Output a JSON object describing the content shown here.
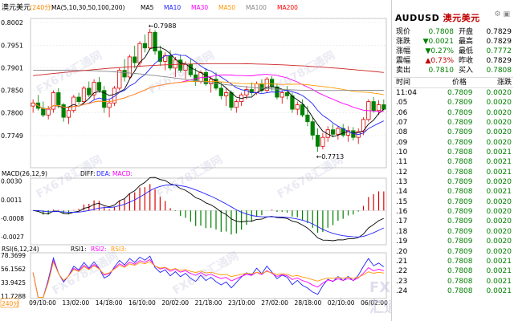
{
  "main": {
    "title": "澳元美元",
    "period": "240分",
    "ma_label": "MA(5,10,30,50,100,200)",
    "ma_items": [
      {
        "label": "MA5",
        "color": "#000000"
      },
      {
        "label": "MA10",
        "color": "#2222ff"
      },
      {
        "label": "MA30",
        "color": "#ff00ff"
      },
      {
        "label": "MA50",
        "color": "#ff9900"
      },
      {
        "label": "MA100",
        "color": "#888888"
      },
      {
        "label": "MA200",
        "color": "#ff0000"
      }
    ],
    "y_labels": [
      "0.8002",
      "0.7951",
      "0.7901",
      "0.7850",
      "0.7800",
      "0.7749"
    ],
    "high_label": "0.7988",
    "low_label": "0.7713"
  },
  "macd": {
    "label": "MACD(26,12,9)",
    "diff": "DIFF:",
    "dea": "DEA:",
    "macd": "MACD:",
    "y_labels": [
      "0.0030",
      "0.0011",
      "-0.0008",
      "-0.0027"
    ]
  },
  "rsi": {
    "label": "RSI(6,12,24)",
    "rsi1": "RSI1:",
    "rsi2": "RSI2:",
    "rsi3": "RSI3:",
    "y_labels": [
      "78.3699",
      "56.1562",
      "33.9425",
      "11.7288"
    ]
  },
  "x_labels": [
    "09/10:00",
    "13/02:00",
    "14/18:00",
    "16/10:00",
    "20/02:00",
    "21/18:00",
    "23/10:00",
    "27/02:00",
    "28/18:00",
    "02/10:00",
    "06/02:00"
  ],
  "period_box": "240分",
  "sidebar": {
    "symbol": "AUDUSD",
    "name": "澳元美元",
    "quote": [
      {
        "l1": "现价",
        "v1": "0.7808",
        "c1": "#008000",
        "l2": "开盘",
        "v2": "0.7829",
        "c2": "#000000"
      },
      {
        "l1": "涨跌",
        "v1": "▼0.0021",
        "c1": "#008000",
        "l2": "最高",
        "v2": "0.7829",
        "c2": "#000000"
      },
      {
        "l1": "涨幅",
        "v1": "▼0.27%",
        "c1": "#008000",
        "l2": "最低",
        "v2": "0.7772",
        "c2": "#008000"
      },
      {
        "l1": "震幅",
        "v1": "▲0.73%",
        "c1": "#c00000",
        "l2": "昨收",
        "v2": "0.7829",
        "c2": "#000000"
      },
      {
        "l1": "卖出",
        "v1": "0.7810",
        "c1": "#008000",
        "l2": "买入",
        "v2": "0.7808",
        "c2": "#008000"
      }
    ],
    "tick_header": {
      "time": "时间",
      "price": "价格",
      "change": "涨跌"
    },
    "ticks": [
      {
        "time": "11:04",
        "price": "0.7809",
        "chg": "0.0020"
      },
      {
        "time": ".05",
        "price": "0.7809",
        "chg": "0.0020"
      },
      {
        "time": ".06",
        "price": "0.7809",
        "chg": "0.0020"
      },
      {
        "time": ".07",
        "price": "0.7809",
        "chg": "0.0020"
      },
      {
        "time": ".08",
        "price": "0.7809",
        "chg": "0.0020"
      },
      {
        "time": ".09",
        "price": "0.7809",
        "chg": "0.0020"
      },
      {
        "time": ".10",
        "price": "0.7808",
        "chg": "0.0021"
      },
      {
        "time": ".11",
        "price": "0.7808",
        "chg": "0.0021"
      },
      {
        "time": ".12",
        "price": "0.7808",
        "chg": "0.0021"
      },
      {
        "time": ".13",
        "price": "0.7809",
        "chg": "0.0020"
      },
      {
        "time": ".14",
        "price": "0.7808",
        "chg": "0.0021"
      },
      {
        "time": ".15",
        "price": "0.7809",
        "chg": "0.0020"
      },
      {
        "time": ".16",
        "price": "0.7809",
        "chg": "0.0020"
      },
      {
        "time": ".17",
        "price": "0.7809",
        "chg": "0.0020"
      },
      {
        "time": ".18",
        "price": "0.7809",
        "chg": "0.0020"
      },
      {
        "time": ".19",
        "price": "0.7809",
        "chg": "0.0020"
      },
      {
        "time": ".20",
        "price": "0.7809",
        "chg": "0.0020"
      },
      {
        "time": ".21",
        "price": "0.7808",
        "chg": "0.0021"
      },
      {
        "time": ".22",
        "price": "0.7808",
        "chg": "0.0021"
      },
      {
        "time": ".23",
        "price": "0.7808",
        "chg": "0.0021"
      },
      {
        "time": ".24",
        "price": "0.7808",
        "chg": "0.0021"
      }
    ]
  },
  "watermark": "FX678汇通网",
  "chart_data": {
    "type": "line",
    "candles": [
      [
        0.7815,
        0.783,
        0.78,
        0.7822
      ],
      [
        0.7822,
        0.784,
        0.7805,
        0.781
      ],
      [
        0.781,
        0.7825,
        0.779,
        0.7795
      ],
      [
        0.7795,
        0.7815,
        0.7785,
        0.7808
      ],
      [
        0.7808,
        0.785,
        0.78,
        0.7845
      ],
      [
        0.7845,
        0.7855,
        0.781,
        0.7818
      ],
      [
        0.7818,
        0.7822,
        0.778,
        0.779
      ],
      [
        0.779,
        0.7812,
        0.7775,
        0.7805
      ],
      [
        0.7805,
        0.784,
        0.78,
        0.7835
      ],
      [
        0.7835,
        0.7845,
        0.7818,
        0.7825
      ],
      [
        0.7825,
        0.786,
        0.782,
        0.7855
      ],
      [
        0.7855,
        0.787,
        0.7835,
        0.784
      ],
      [
        0.784,
        0.7875,
        0.783,
        0.7868
      ],
      [
        0.7868,
        0.788,
        0.7845,
        0.785
      ],
      [
        0.785,
        0.786,
        0.78,
        0.7812
      ],
      [
        0.7812,
        0.783,
        0.779,
        0.7822
      ],
      [
        0.7822,
        0.786,
        0.7815,
        0.7855
      ],
      [
        0.7855,
        0.79,
        0.785,
        0.7895
      ],
      [
        0.7895,
        0.792,
        0.787,
        0.788
      ],
      [
        0.788,
        0.793,
        0.7875,
        0.7925
      ],
      [
        0.7925,
        0.795,
        0.79,
        0.7912
      ],
      [
        0.7912,
        0.796,
        0.7905,
        0.7955
      ],
      [
        0.7955,
        0.7975,
        0.7935,
        0.7945
      ],
      [
        0.7945,
        0.7988,
        0.794,
        0.798
      ],
      [
        0.798,
        0.7985,
        0.793,
        0.7938
      ],
      [
        0.7938,
        0.795,
        0.7905,
        0.7915
      ],
      [
        0.7915,
        0.7935,
        0.7895,
        0.7928
      ],
      [
        0.7928,
        0.794,
        0.7895,
        0.79
      ],
      [
        0.79,
        0.7925,
        0.788,
        0.7918
      ],
      [
        0.7918,
        0.793,
        0.789,
        0.7895
      ],
      [
        0.7895,
        0.7915,
        0.7875,
        0.7908
      ],
      [
        0.7908,
        0.792,
        0.788,
        0.7885
      ],
      [
        0.7885,
        0.79,
        0.786,
        0.787
      ],
      [
        0.787,
        0.7895,
        0.7865,
        0.789
      ],
      [
        0.789,
        0.79,
        0.786,
        0.7865
      ],
      [
        0.7865,
        0.788,
        0.7845,
        0.7875
      ],
      [
        0.7875,
        0.789,
        0.785,
        0.7855
      ],
      [
        0.7855,
        0.787,
        0.783,
        0.7838
      ],
      [
        0.7838,
        0.7855,
        0.7815,
        0.7845
      ],
      [
        0.7845,
        0.785,
        0.7805,
        0.7812
      ],
      [
        0.7812,
        0.783,
        0.78,
        0.7825
      ],
      [
        0.7825,
        0.7845,
        0.7815,
        0.784
      ],
      [
        0.784,
        0.786,
        0.783,
        0.7852
      ],
      [
        0.7852,
        0.7868,
        0.7838,
        0.7845
      ],
      [
        0.7845,
        0.787,
        0.784,
        0.7865
      ],
      [
        0.7865,
        0.7875,
        0.7845,
        0.785
      ],
      [
        0.785,
        0.788,
        0.7845,
        0.7875
      ],
      [
        0.7875,
        0.7882,
        0.785,
        0.7858
      ],
      [
        0.7858,
        0.7865,
        0.783,
        0.7835
      ],
      [
        0.7835,
        0.785,
        0.782,
        0.7845
      ],
      [
        0.7845,
        0.786,
        0.783,
        0.7838
      ],
      [
        0.7838,
        0.7845,
        0.78,
        0.7808
      ],
      [
        0.7808,
        0.7825,
        0.7795,
        0.7818
      ],
      [
        0.7818,
        0.783,
        0.779,
        0.7795
      ],
      [
        0.7795,
        0.7815,
        0.777,
        0.778
      ],
      [
        0.778,
        0.779,
        0.774,
        0.775
      ],
      [
        0.775,
        0.7765,
        0.7713,
        0.7725
      ],
      [
        0.7725,
        0.7755,
        0.7718,
        0.7745
      ],
      [
        0.7745,
        0.777,
        0.7735,
        0.7762
      ],
      [
        0.7762,
        0.7775,
        0.7745,
        0.7752
      ],
      [
        0.7752,
        0.777,
        0.774,
        0.7765
      ],
      [
        0.7765,
        0.7775,
        0.7745,
        0.775
      ],
      [
        0.775,
        0.777,
        0.7735,
        0.776
      ],
      [
        0.776,
        0.7768,
        0.7738,
        0.7745
      ],
      [
        0.7745,
        0.7765,
        0.773,
        0.7758
      ],
      [
        0.7758,
        0.779,
        0.775,
        0.7785
      ],
      [
        0.7785,
        0.783,
        0.778,
        0.7825
      ],
      [
        0.7825,
        0.7835,
        0.78,
        0.7805
      ],
      [
        0.7805,
        0.7828,
        0.7795,
        0.7818
      ],
      [
        0.7818,
        0.783,
        0.7805,
        0.7808
      ]
    ],
    "x_ticks": [
      "09/10:00",
      "13/02:00",
      "14/18:00",
      "16/10:00",
      "20/02:00",
      "21/18:00",
      "23/10:00",
      "27/02:00",
      "28/18:00",
      "02/10:00",
      "06/02:00"
    ],
    "ylim": [
      0.7713,
      0.8002
    ],
    "annotations": [
      {
        "text": "0.7988",
        "kind": "high"
      },
      {
        "text": "0.7713",
        "kind": "low"
      }
    ],
    "ma_series": [
      "MA5",
      "MA10",
      "MA30",
      "MA50",
      "MA100",
      "MA200"
    ],
    "macd_ylim": [
      -0.0035,
      0.0033
    ],
    "rsi_ylim": [
      8,
      82
    ]
  }
}
